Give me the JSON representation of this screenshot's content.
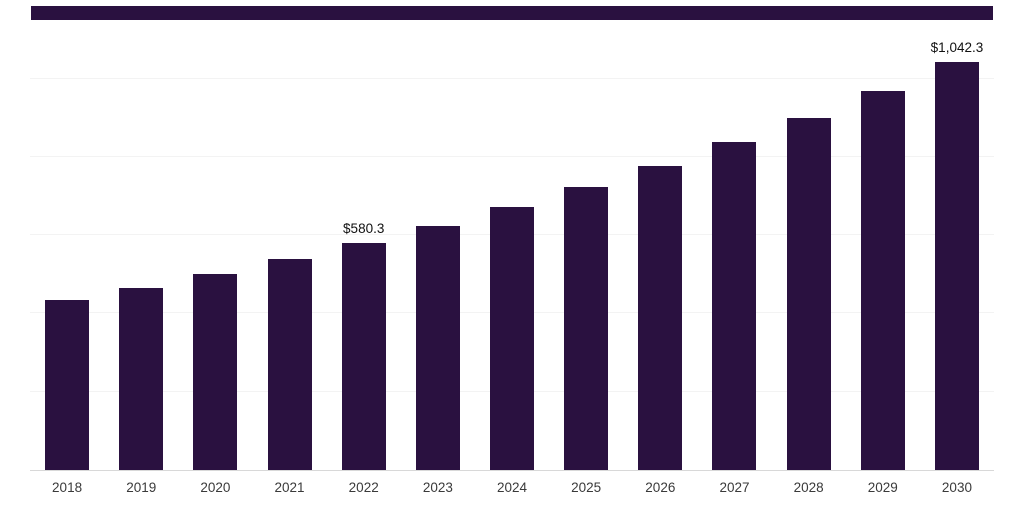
{
  "page": {
    "background": "#ffffff"
  },
  "top_strip": {
    "color": "#2a1140"
  },
  "chart_data": {
    "type": "bar",
    "title": "",
    "xlabel": "",
    "ylabel": "",
    "categories": [
      "2018",
      "2019",
      "2020",
      "2021",
      "2022",
      "2023",
      "2024",
      "2025",
      "2026",
      "2027",
      "2028",
      "2029",
      "2030"
    ],
    "values": [
      433.1,
      465.9,
      501.2,
      539.3,
      580.3,
      624.4,
      671.8,
      722.8,
      777.7,
      836.7,
      900.2,
      968.5,
      1042.3
    ],
    "data_labels": [
      "",
      "",
      "",
      "",
      "$580.3",
      "",
      "",
      "",
      "",
      "",
      "",
      "",
      "$1,042.3"
    ],
    "bar_color": "#2a1140",
    "ylim": [
      0,
      1124
    ],
    "gridlines": [
      200,
      400,
      600,
      800,
      1000
    ],
    "grid": true,
    "legend": "none",
    "axis_line_color": "#d8d8d8",
    "gridline_color": "#f3f3f3"
  }
}
